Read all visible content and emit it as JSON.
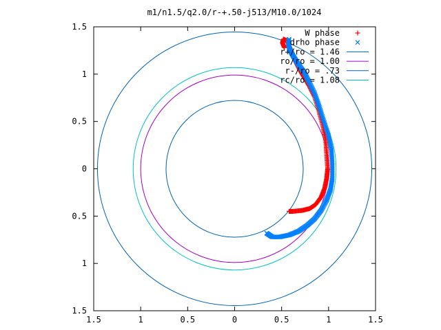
{
  "chart_data": {
    "type": "scatter",
    "title": "m1/n1.5/q2.0/r-+.50-j513/M10.0/1024",
    "xlabel": "",
    "ylabel": "",
    "xlim": [
      -1.5,
      1.5
    ],
    "ylim": [
      -1.5,
      1.5
    ],
    "x_ticks": [
      -1.5,
      -1,
      -0.5,
      0,
      0.5,
      1,
      1.5
    ],
    "y_ticks": [
      -1.5,
      -1,
      -0.5,
      0,
      0.5,
      1,
      1.5
    ],
    "x_tick_labels": [
      "1.5",
      "1",
      "0.5",
      "0",
      "0.5",
      "1",
      "1.5"
    ],
    "y_tick_labels": [
      "1.5",
      "1",
      "0.5",
      "0",
      "0.5",
      "1",
      "1.5"
    ],
    "grid": false,
    "legend_position": "top-right",
    "series": [
      {
        "name": "W phase",
        "marker": "plus",
        "color": "#ff0000",
        "kind": "points",
        "path": [
          [
            0.53,
            1.28
          ],
          [
            0.51,
            1.33
          ],
          [
            0.52,
            1.37
          ],
          [
            0.56,
            1.35
          ],
          [
            0.6,
            1.25
          ],
          [
            0.64,
            1.15
          ],
          [
            0.68,
            1.07
          ],
          [
            0.73,
            0.98
          ],
          [
            0.79,
            0.88
          ],
          [
            0.85,
            0.76
          ],
          [
            0.9,
            0.6
          ],
          [
            0.94,
            0.45
          ],
          [
            0.97,
            0.3
          ],
          [
            0.98,
            0.15
          ],
          [
            0.99,
            0.0
          ],
          [
            0.98,
            -0.1
          ],
          [
            0.96,
            -0.2
          ],
          [
            0.92,
            -0.3
          ],
          [
            0.86,
            -0.38
          ],
          [
            0.8,
            -0.42
          ],
          [
            0.72,
            -0.44
          ],
          [
            0.62,
            -0.45
          ],
          [
            0.58,
            -0.45
          ]
        ]
      },
      {
        "name": "drho phase",
        "marker": "cross",
        "color": "#0080ff",
        "kind": "points",
        "path": [
          [
            0.58,
            1.37
          ],
          [
            0.57,
            1.32
          ],
          [
            0.59,
            1.25
          ],
          [
            0.63,
            1.18
          ],
          [
            0.68,
            1.1
          ],
          [
            0.74,
            1.02
          ],
          [
            0.79,
            0.92
          ],
          [
            0.85,
            0.8
          ],
          [
            0.9,
            0.66
          ],
          [
            0.95,
            0.5
          ],
          [
            1.0,
            0.35
          ],
          [
            1.03,
            0.2
          ],
          [
            1.04,
            0.05
          ],
          [
            1.04,
            -0.1
          ],
          [
            1.02,
            -0.22
          ],
          [
            0.98,
            -0.33
          ],
          [
            0.92,
            -0.44
          ],
          [
            0.85,
            -0.53
          ],
          [
            0.77,
            -0.6
          ],
          [
            0.68,
            -0.66
          ],
          [
            0.58,
            -0.7
          ],
          [
            0.48,
            -0.72
          ],
          [
            0.4,
            -0.72
          ],
          [
            0.34,
            -0.68
          ]
        ]
      },
      {
        "name": "r+/ro = 1.46",
        "kind": "circle",
        "radius": 1.46,
        "color": "#0060ad"
      },
      {
        "name": "ro/ro = 1.00",
        "kind": "circle",
        "radius": 1.0,
        "color": "#a000c0"
      },
      {
        "name": "r-/ro = .73",
        "kind": "circle",
        "radius": 0.73,
        "color": "#0060ad"
      },
      {
        "name": "rc/ro = 1.08",
        "kind": "circle",
        "radius": 1.08,
        "color": "#00c0c0"
      }
    ]
  }
}
